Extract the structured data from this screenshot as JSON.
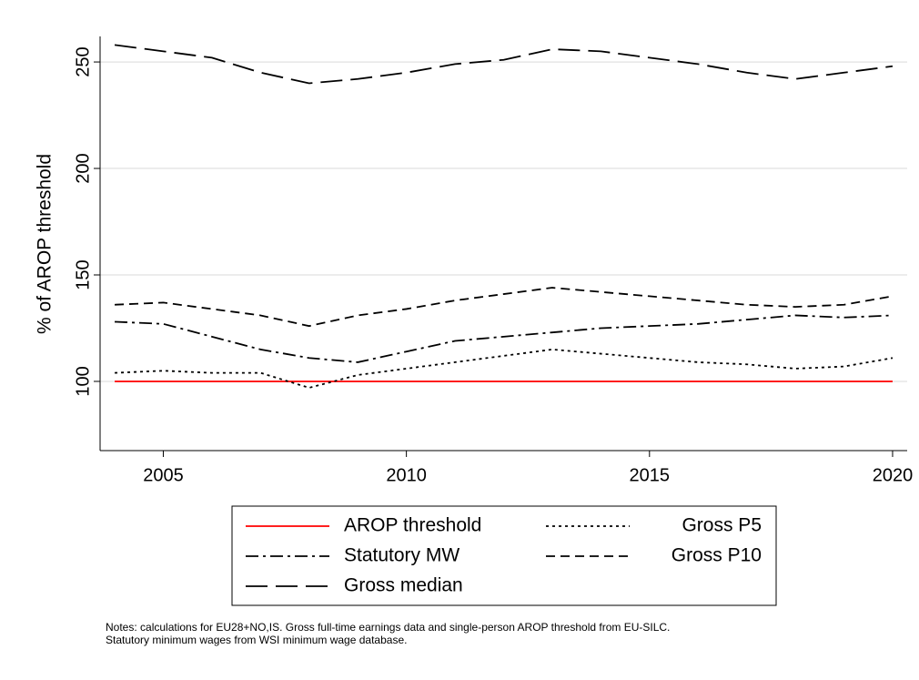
{
  "chart_data": {
    "type": "line",
    "y_label": "% of AROP threshold",
    "x": [
      2004,
      2005,
      2006,
      2007,
      2008,
      2009,
      2010,
      2011,
      2012,
      2013,
      2014,
      2015,
      2016,
      2017,
      2018,
      2019,
      2020
    ],
    "series": [
      {
        "name": "AROP threshold",
        "color": "#ff0000",
        "dash": "none",
        "values": [
          100,
          100,
          100,
          100,
          100,
          100,
          100,
          100,
          100,
          100,
          100,
          100,
          100,
          100,
          100,
          100,
          100
        ]
      },
      {
        "name": "Gross P5",
        "color": "#000000",
        "dash": "3,4",
        "values": [
          104,
          105,
          104,
          104,
          97,
          103,
          106,
          109,
          112,
          115,
          113,
          111,
          109,
          108,
          106,
          107,
          111
        ]
      },
      {
        "name": "Statutory MW",
        "color": "#000000",
        "dash": "14,5,3,5",
        "values": [
          128,
          127,
          121,
          115,
          111,
          109,
          114,
          119,
          121,
          123,
          125,
          126,
          127,
          129,
          131,
          130,
          131
        ]
      },
      {
        "name": "Gross P10",
        "color": "#000000",
        "dash": "10,6",
        "values": [
          136,
          137,
          134,
          131,
          126,
          131,
          134,
          138,
          141,
          144,
          142,
          140,
          138,
          136,
          135,
          136,
          140
        ]
      },
      {
        "name": "Gross median",
        "color": "#000000",
        "dash": "24,9",
        "values": [
          258,
          255,
          252,
          245,
          240,
          242,
          245,
          249,
          251,
          256,
          255,
          252,
          249,
          245,
          242,
          245,
          248
        ]
      }
    ],
    "xlim": [
      2003.7,
      2020.3
    ],
    "xticks": [
      2005,
      2010,
      2015,
      2020
    ],
    "ylim": [
      67.5,
      262
    ],
    "yticks": [
      100,
      150,
      200,
      250
    ],
    "grid": true,
    "legend": "bottom",
    "notes": [
      "Notes: calculations for EU28+NO,IS. Gross full-time earnings data and single-person AROP threshold from EU-SILC.",
      "Statutory minimum wages from WSI minimum wage database."
    ]
  }
}
